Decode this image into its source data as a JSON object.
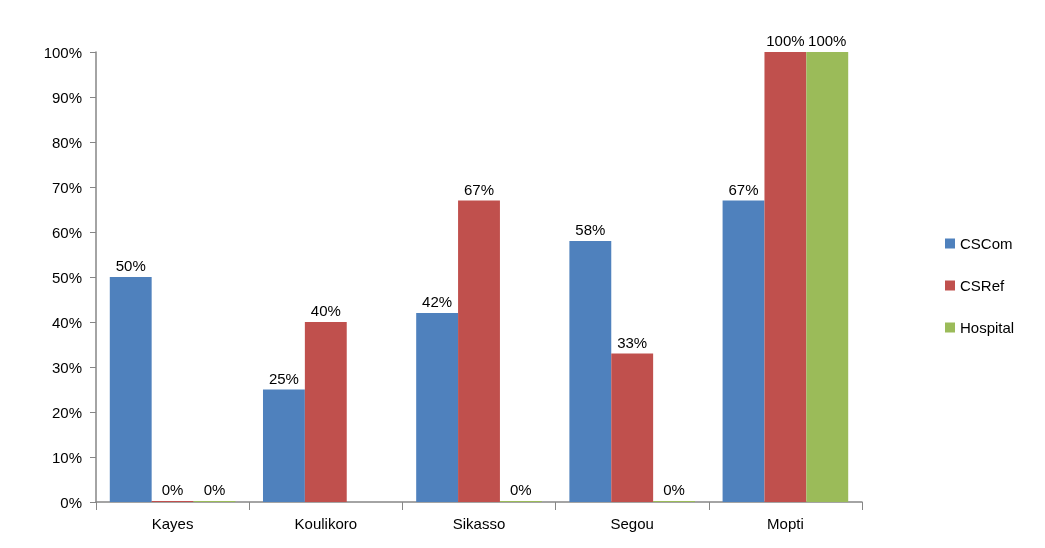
{
  "chart_data": {
    "type": "bar",
    "categories": [
      "Kayes",
      "Koulikoro",
      "Sikasso",
      "Segou",
      "Mopti"
    ],
    "series": [
      {
        "name": "CSCom",
        "color": "#4f81bd",
        "values": [
          50,
          25,
          42,
          58,
          67
        ],
        "value_labels": [
          "50%",
          "25%",
          "42%",
          "58%",
          "67%"
        ]
      },
      {
        "name": "CSRef",
        "color": "#c0504d",
        "values": [
          0,
          40,
          67,
          33,
          100
        ],
        "value_labels": [
          "0%",
          "40%",
          "67%",
          "33%",
          "100%"
        ]
      },
      {
        "name": "Hospital",
        "color": "#9bbb59",
        "values": [
          0,
          null,
          0,
          0,
          100
        ],
        "value_labels": [
          "0%",
          null,
          "0%",
          "0%",
          "100%"
        ]
      }
    ],
    "ylim": [
      0,
      100
    ],
    "yticks": [
      {
        "value": 0,
        "label": "0%"
      },
      {
        "value": 10,
        "label": "10%"
      },
      {
        "value": 20,
        "label": "20%"
      },
      {
        "value": 30,
        "label": "30%"
      },
      {
        "value": 40,
        "label": "40%"
      },
      {
        "value": 50,
        "label": "50%"
      },
      {
        "value": 60,
        "label": "60%"
      },
      {
        "value": 70,
        "label": "70%"
      },
      {
        "value": 80,
        "label": "80%"
      },
      {
        "value": 90,
        "label": "90%"
      },
      {
        "value": 100,
        "label": "100%"
      }
    ],
    "grid": false,
    "legend": "right"
  }
}
